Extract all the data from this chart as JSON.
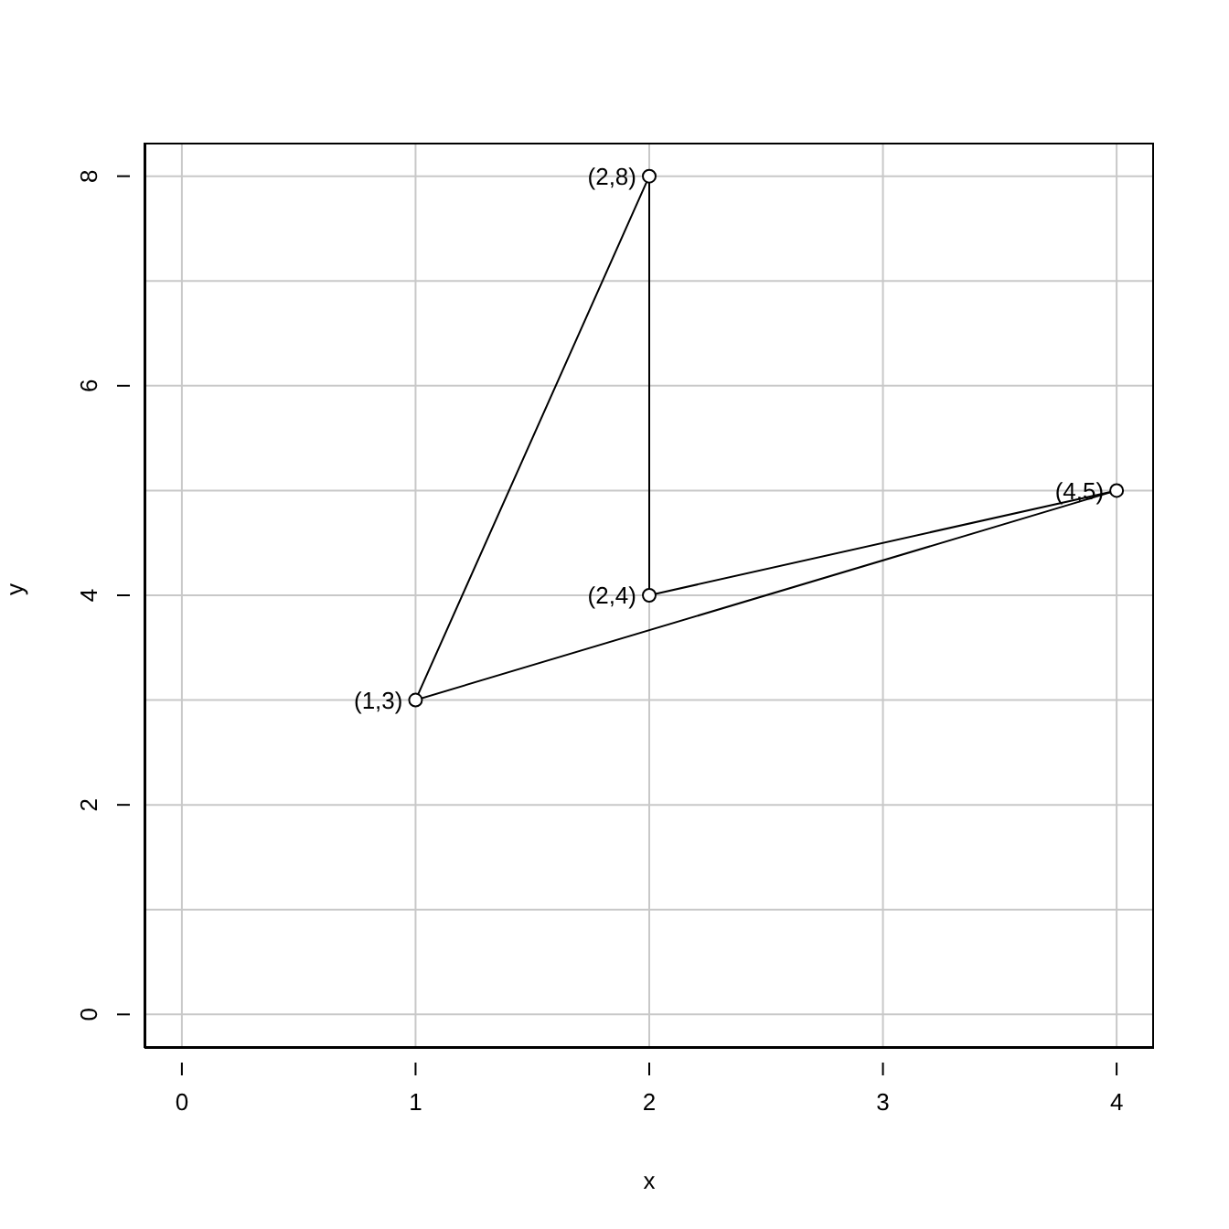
{
  "chart_data": {
    "type": "line",
    "xlabel": "x",
    "ylabel": "y",
    "series": [
      {
        "x": [
          1,
          2,
          2,
          4
        ],
        "color": "#000000",
        "values": [
          3,
          8,
          4,
          5
        ]
      },
      {
        "marker": "none",
        "x": [
          1,
          4
        ],
        "color": "#000000",
        "values": [
          3,
          5
        ]
      }
    ],
    "marker": "circle",
    "line_style": "solid",
    "grid": true,
    "xlim": [
      -0.16,
      4.16
    ],
    "xticks": [
      0,
      1,
      2,
      3,
      4
    ],
    "ylim": [
      -0.32,
      8.32
    ],
    "yticks": [
      0,
      {
        "value": 1,
        "label": null
      },
      2,
      {
        "value": 3,
        "label": null
      },
      4,
      {
        "value": 5,
        "label": null
      },
      6,
      {
        "value": 7,
        "label": null
      },
      8
    ],
    "annotations": [
      {
        "text": "(1,3)",
        "x": 1,
        "y": 3
      },
      {
        "text": "(2,8)",
        "x": 2,
        "y": 8
      },
      {
        "text": "(2,4)",
        "x": 2,
        "y": 4
      },
      {
        "text": "(4,5)",
        "x": 4,
        "y": 5
      }
    ]
  }
}
